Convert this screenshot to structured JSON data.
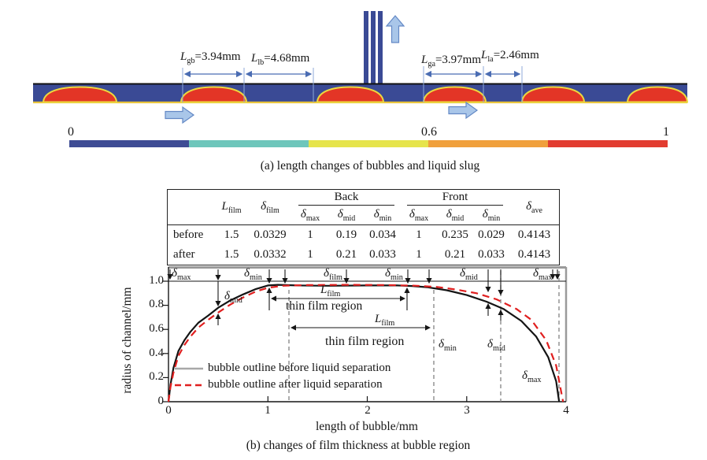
{
  "panel_a": {
    "caption": "(a) length changes of bubbles and liquid slug",
    "dim_labels": [
      "L_gb=3.94mm",
      "L_lb=4.68mm",
      "L_ga=3.97mm",
      "L_la=2.46mm"
    ],
    "colorbar": {
      "tick_labels": [
        "0",
        "0.6",
        "1"
      ],
      "colors": [
        "#3e4c94",
        "#6ec6bb",
        "#e6e44b",
        "#f0a03c",
        "#e23c30"
      ]
    },
    "channel_color": "#3a4a95",
    "bubble_color": "#e33526",
    "interface_color": "#ecd83e",
    "flow_arrow_color": "#a9c6e9"
  },
  "panel_b": {
    "table": {
      "col_lfilm": "L_film",
      "col_dfilm": "δ_film",
      "group_back": "Back",
      "group_front": "Front",
      "col_dave": "δ_ave",
      "sub_headers": [
        "δ_max",
        "δ_mid",
        "δ_min",
        "δ_max",
        "δ_mid",
        "δ_min"
      ],
      "rows": [
        [
          "before",
          "1.5",
          "0.0329",
          "1",
          "0.19",
          "0.034",
          "1",
          "0.235",
          "0.029",
          "0.4143"
        ],
        [
          "after",
          "1.5",
          "0.0332",
          "1",
          "0.21",
          "0.033",
          "1",
          "0.21",
          "0.033",
          "0.4143"
        ]
      ]
    },
    "plot": {
      "ylabel": "radius of channel/mm",
      "xlabel": "length of bubble/mm",
      "ytick_labels": [
        "0",
        "0.2",
        "0.4",
        "0.6",
        "0.8",
        "1.0"
      ],
      "xtick_labels": [
        "0",
        "1",
        "2",
        "3",
        "4"
      ],
      "legend": [
        "bubble outline before liquid separation",
        "bubble outline after liquid separation"
      ],
      "strip_labels": [
        "δ_max",
        "δ_min",
        "δ_film",
        "δ_min",
        "δ_mid",
        "δ_max"
      ],
      "inner_labels": {
        "dm_left": "δ_mid",
        "lf1": "L_film",
        "tf1": "thin film region",
        "lf2": "L_film",
        "tf2": "thin film region",
        "dmin_r": "δ_min",
        "dmid_r": "δ_mid",
        "dmax_br": "δ_max"
      },
      "caption": "(b) changes of film thickness at bubble region"
    }
  },
  "chart_data": {
    "type": "line",
    "title": "(b) changes of film thickness at bubble region",
    "xlabel": "length of bubble/mm",
    "ylabel": "radius of channel/mm",
    "xlim": [
      0,
      4
    ],
    "ylim": [
      0,
      1.0
    ],
    "xticks": [
      0,
      1,
      2,
      3,
      4
    ],
    "yticks": [
      0,
      0.2,
      0.4,
      0.6,
      0.8,
      1.0
    ],
    "grid": false,
    "legend_position": "inside-left-bottom",
    "series": [
      {
        "name": "bubble outline before liquid separation",
        "color": "#141414",
        "dash": "solid",
        "x": [
          0,
          0.02,
          0.05,
          0.1,
          0.16,
          0.22,
          0.3,
          0.4,
          0.5,
          0.62,
          0.75,
          0.88,
          1.0,
          1.1,
          1.3,
          1.6,
          2.0,
          2.3,
          2.45,
          2.6,
          2.8,
          3.0,
          3.2,
          3.37,
          3.55,
          3.7,
          3.82,
          3.9,
          3.93
        ],
        "y": [
          0,
          0.14,
          0.28,
          0.42,
          0.51,
          0.58,
          0.655,
          0.715,
          0.78,
          0.84,
          0.89,
          0.935,
          0.965,
          0.97,
          0.965,
          0.962,
          0.965,
          0.965,
          0.96,
          0.95,
          0.925,
          0.885,
          0.83,
          0.77,
          0.67,
          0.54,
          0.37,
          0.17,
          0
        ]
      },
      {
        "name": "bubble outline after liquid separation",
        "color": "#e01f1f",
        "dash": "9,6",
        "x": [
          0,
          0.02,
          0.05,
          0.1,
          0.16,
          0.22,
          0.3,
          0.4,
          0.5,
          0.62,
          0.75,
          0.88,
          1.0,
          1.15,
          1.4,
          1.8,
          2.2,
          2.5,
          2.7,
          2.9,
          3.1,
          3.3,
          3.5,
          3.65,
          3.8,
          3.9,
          3.97
        ],
        "y": [
          0,
          0.12,
          0.24,
          0.38,
          0.47,
          0.54,
          0.615,
          0.68,
          0.74,
          0.805,
          0.865,
          0.915,
          0.945,
          0.962,
          0.968,
          0.97,
          0.968,
          0.962,
          0.952,
          0.93,
          0.9,
          0.85,
          0.77,
          0.68,
          0.51,
          0.3,
          0
        ]
      }
    ],
    "annotations": {
      "film_values_marked": [
        "δ_max",
        "δ_mid",
        "δ_min",
        "δ_film"
      ],
      "L_film_back_span_mm": [
        1.0,
        2.4
      ],
      "L_film_front_span_mm": [
        1.2,
        2.65
      ]
    }
  }
}
